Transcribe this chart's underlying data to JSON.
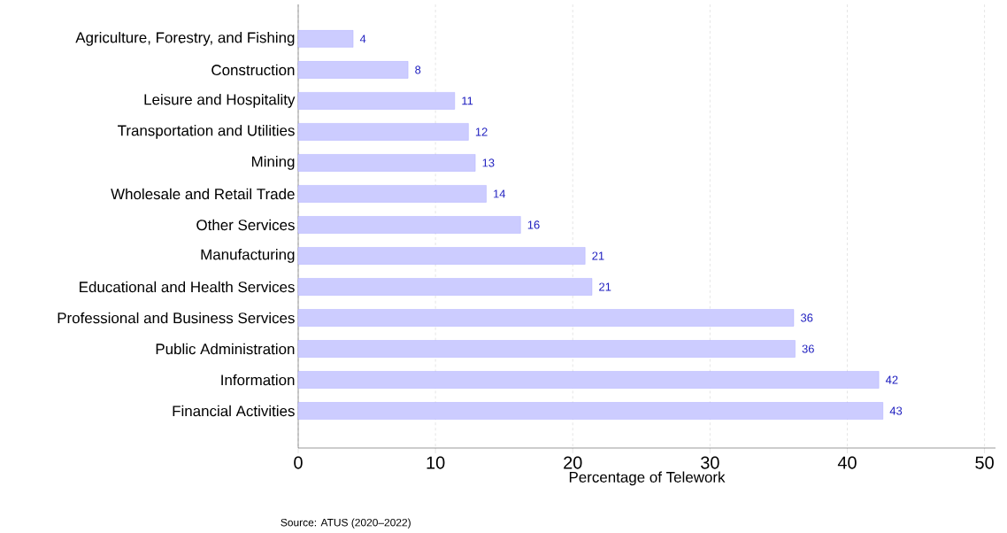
{
  "chart_data": {
    "type": "bar",
    "orientation": "horizontal",
    "xlabel": "Percentage of Telework",
    "categories": [
      "Agriculture, Forestry, and Fishing",
      "Construction",
      "Leisure and Hospitality",
      "Transportation and Utilities",
      "Mining",
      "Wholesale and Retail Trade",
      "Other Services",
      "Manufacturing",
      "Educational and Health Services",
      "Professional and Business Services",
      "Public Administration",
      "Information",
      "Financial Activities"
    ],
    "values": [
      4.0,
      8.0,
      11.4,
      12.4,
      12.9,
      13.7,
      16.2,
      20.9,
      21.4,
      36.1,
      36.2,
      42.3,
      42.6
    ],
    "value_labels": [
      "4",
      "8",
      "11",
      "12",
      "13",
      "14",
      "16",
      "21",
      "21",
      "36",
      "36",
      "42",
      "43"
    ],
    "color": "#ccccff",
    "xlim": [
      0,
      50.8
    ],
    "xticks": [
      0,
      10,
      20,
      30,
      40,
      50
    ],
    "grid": "x",
    "annotations": [
      "Source: ATUS (2020–2022)"
    ]
  }
}
